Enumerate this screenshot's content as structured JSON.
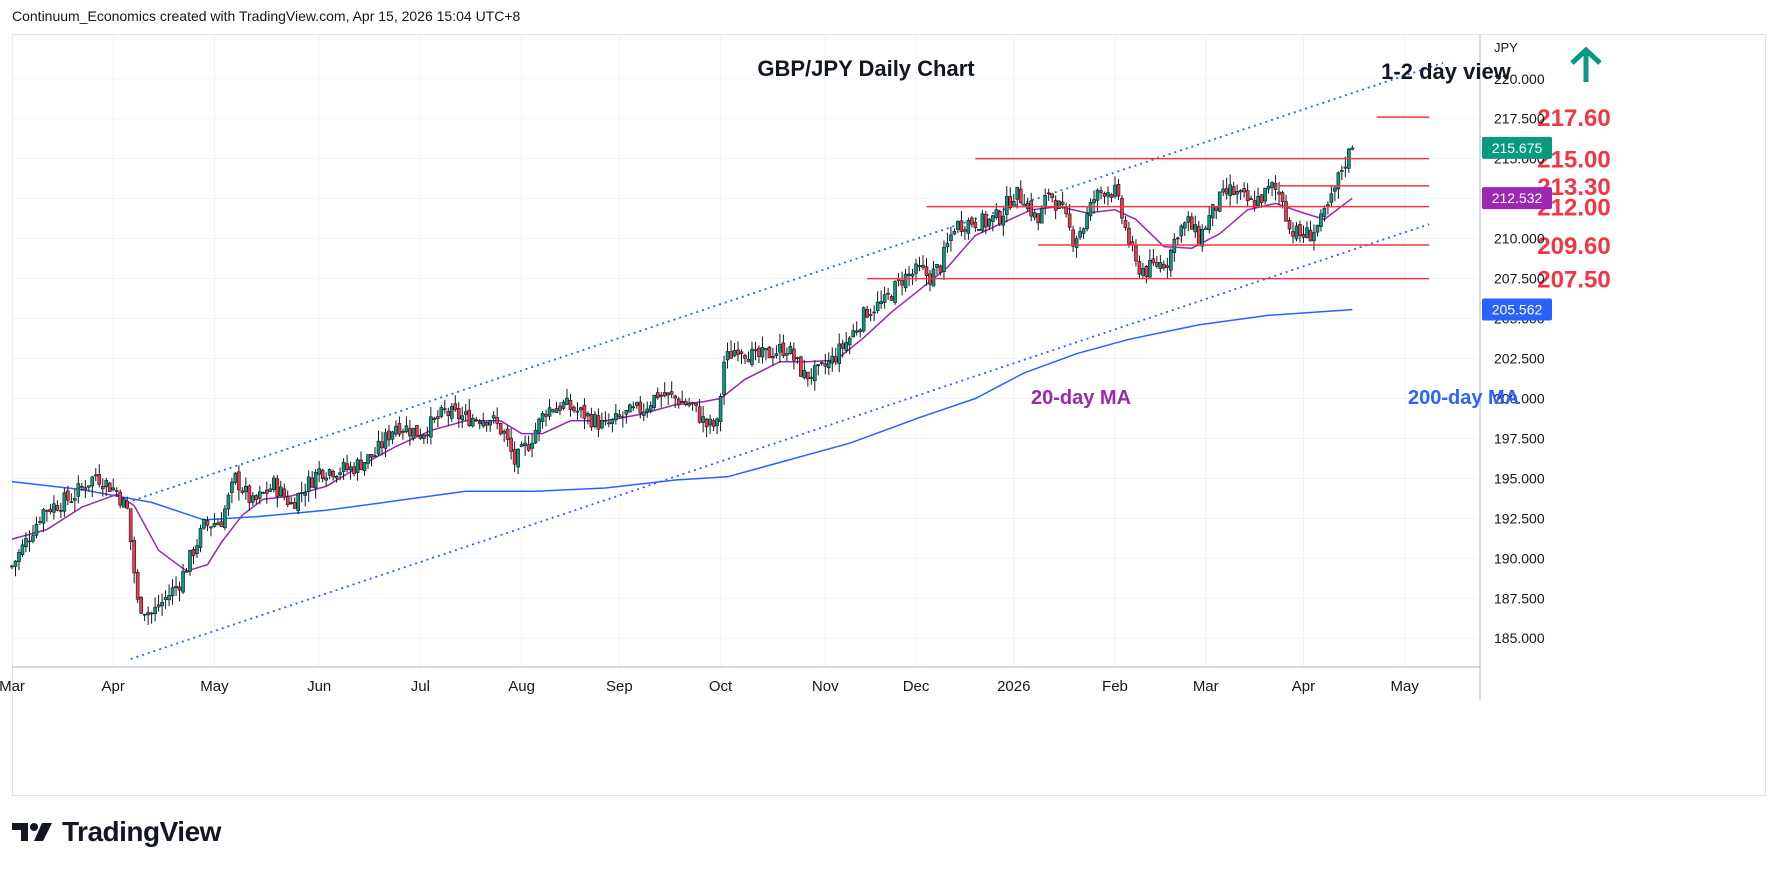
{
  "header": {
    "attribution": "Continuum_Economics created with TradingView.com, Apr 15, 2026 15:04 UTC+8"
  },
  "footer": {
    "brand": "TradingView",
    "logo_icon": "tradingview-logo-icon"
  },
  "colors": {
    "up": "#089981",
    "down": "#f23645",
    "ma20": "#9c27b0",
    "ma200": "#2962ff",
    "level": "#f23645",
    "arrow": "#089981",
    "grid": "#f0f3fa"
  },
  "chart_data": {
    "type": "candlestick",
    "title": "GBP/JPY Daily Chart",
    "view_label": "1-2 day view",
    "view_icon": "up-arrow-icon",
    "currency": "JPY",
    "y_ticks": [
      185,
      187.5,
      190,
      192.5,
      195,
      197.5,
      200,
      202.5,
      205,
      207.5,
      210,
      212.5,
      215,
      217.5,
      220
    ],
    "y_tick_labels": [
      "185.000",
      "187.500",
      "190.000",
      "192.500",
      "195.000",
      "197.500",
      "200.000",
      "202.500",
      "205.000",
      "207.500",
      "210.000",
      "212.500",
      "215.000",
      "217.500",
      "220.000"
    ],
    "ylim": [
      183.2,
      222.8
    ],
    "x_months": [
      "Mar",
      "Apr",
      "May",
      "Jun",
      "Jul",
      "Aug",
      "Sep",
      "Oct",
      "Nov",
      "Dec",
      "2026",
      "Feb",
      "Mar",
      "Apr",
      "May"
    ],
    "price_badges": [
      {
        "label": "215.675",
        "value": 215.675,
        "color": "#089981"
      },
      {
        "label": "212.532",
        "value": 212.532,
        "color": "#9c27b0"
      },
      {
        "label": "205.562",
        "value": 205.562,
        "color": "#2962ff"
      }
    ],
    "levels": [
      {
        "label": "217.60",
        "value": 217.6,
        "from_day": 391,
        "to_day": 406
      },
      {
        "label": "215.00",
        "value": 215.0,
        "from_day": 276,
        "to_day": 406
      },
      {
        "label": "213.30",
        "value": 213.3,
        "from_day": 363,
        "to_day": 406
      },
      {
        "label": "212.00",
        "value": 212.0,
        "from_day": 262,
        "to_day": 406
      },
      {
        "label": "209.60",
        "value": 209.6,
        "from_day": 294,
        "to_day": 406
      },
      {
        "label": "207.50",
        "value": 207.5,
        "from_day": 245,
        "to_day": 406
      }
    ],
    "channel": {
      "upper": [
        [
          33,
          193.5
        ],
        [
          410,
          221.0
        ]
      ],
      "lower": [
        [
          34,
          183.7
        ],
        [
          406,
          210.9
        ]
      ]
    },
    "ma_labels": {
      "ma20": "20-day MA",
      "ma200": "200-day MA"
    },
    "anchors": [
      [
        0,
        189.5
      ],
      [
        9,
        193.0
      ],
      [
        17,
        193.8
      ],
      [
        24,
        195.2
      ],
      [
        30,
        194.2
      ],
      [
        33,
        193.0
      ],
      [
        36,
        187.2
      ],
      [
        40,
        186.5
      ],
      [
        48,
        188.5
      ],
      [
        55,
        192.0
      ],
      [
        60,
        192.4
      ],
      [
        64,
        195.0
      ],
      [
        69,
        193.4
      ],
      [
        75,
        194.6
      ],
      [
        80,
        193.4
      ],
      [
        88,
        195.5
      ],
      [
        97,
        195.6
      ],
      [
        104,
        196.5
      ],
      [
        110,
        198.4
      ],
      [
        117,
        197.8
      ],
      [
        124,
        199.1
      ],
      [
        130,
        198.8
      ],
      [
        137,
        198.8
      ],
      [
        141,
        197.8
      ],
      [
        144,
        196.0
      ],
      [
        148,
        197.2
      ],
      [
        153,
        199.3
      ],
      [
        158,
        199.6
      ],
      [
        164,
        199.0
      ],
      [
        170,
        198.2
      ],
      [
        176,
        199.0
      ],
      [
        181,
        199.4
      ],
      [
        185,
        200.3
      ],
      [
        190,
        200.0
      ],
      [
        195,
        199.5
      ],
      [
        199,
        198.3
      ],
      [
        202,
        198.3
      ],
      [
        204,
        202.3
      ],
      [
        208,
        203.3
      ],
      [
        213,
        202.5
      ],
      [
        218,
        202.9
      ],
      [
        222,
        203.2
      ],
      [
        227,
        201.4
      ],
      [
        231,
        201.6
      ],
      [
        235,
        202.4
      ],
      [
        240,
        203.8
      ],
      [
        245,
        205.5
      ],
      [
        250,
        206.0
      ],
      [
        255,
        207.5
      ],
      [
        260,
        208.0
      ],
      [
        263,
        207.6
      ],
      [
        266,
        208.3
      ],
      [
        270,
        210.8
      ],
      [
        275,
        211.1
      ],
      [
        279,
        211.0
      ],
      [
        283,
        211.4
      ],
      [
        287,
        212.8
      ],
      [
        290,
        212.5
      ],
      [
        294,
        211.0
      ],
      [
        297,
        213.0
      ],
      [
        301,
        211.6
      ],
      [
        304,
        210.0
      ],
      [
        307,
        210.8
      ],
      [
        310,
        212.5
      ],
      [
        313,
        213.1
      ],
      [
        316,
        212.9
      ],
      [
        319,
        210.6
      ],
      [
        322,
        208.3
      ],
      [
        325,
        208.0
      ],
      [
        328,
        208.4
      ],
      [
        331,
        208.6
      ],
      [
        334,
        210.5
      ],
      [
        337,
        211.0
      ],
      [
        340,
        210.0
      ],
      [
        343,
        211.3
      ],
      [
        346,
        212.4
      ],
      [
        349,
        213.0
      ],
      [
        352,
        212.6
      ],
      [
        355,
        212.2
      ],
      [
        358,
        212.6
      ],
      [
        361,
        213.2
      ],
      [
        364,
        212.6
      ],
      [
        366,
        210.6
      ],
      [
        369,
        210.2
      ],
      [
        372,
        210.3
      ],
      [
        375,
        211.0
      ],
      [
        378,
        212.4
      ],
      [
        381,
        214.4
      ],
      [
        383,
        215.3
      ],
      [
        384,
        215.65
      ]
    ],
    "ma20_points": [
      [
        0,
        191.2
      ],
      [
        10,
        191.8
      ],
      [
        20,
        193.2
      ],
      [
        30,
        194.0
      ],
      [
        35,
        193.3
      ],
      [
        42,
        190.5
      ],
      [
        50,
        189.2
      ],
      [
        56,
        189.6
      ],
      [
        60,
        191.0
      ],
      [
        66,
        192.7
      ],
      [
        72,
        193.7
      ],
      [
        80,
        193.9
      ],
      [
        90,
        194.5
      ],
      [
        100,
        195.8
      ],
      [
        110,
        197.0
      ],
      [
        120,
        198.0
      ],
      [
        130,
        198.6
      ],
      [
        140,
        198.6
      ],
      [
        146,
        197.8
      ],
      [
        152,
        197.8
      ],
      [
        160,
        198.6
      ],
      [
        170,
        198.6
      ],
      [
        180,
        199.0
      ],
      [
        190,
        199.6
      ],
      [
        198,
        199.8
      ],
      [
        203,
        200.0
      ],
      [
        210,
        201.2
      ],
      [
        220,
        202.3
      ],
      [
        228,
        202.3
      ],
      [
        236,
        202.4
      ],
      [
        244,
        203.8
      ],
      [
        252,
        205.4
      ],
      [
        260,
        206.8
      ],
      [
        268,
        208.2
      ],
      [
        276,
        210.2
      ],
      [
        284,
        211.0
      ],
      [
        292,
        211.8
      ],
      [
        300,
        212.0
      ],
      [
        308,
        211.6
      ],
      [
        316,
        211.8
      ],
      [
        322,
        211.2
      ],
      [
        330,
        209.5
      ],
      [
        338,
        209.4
      ],
      [
        346,
        210.3
      ],
      [
        354,
        211.8
      ],
      [
        362,
        212.2
      ],
      [
        370,
        211.6
      ],
      [
        376,
        211.2
      ],
      [
        384,
        212.53
      ]
    ],
    "ma200_points": [
      [
        0,
        194.8
      ],
      [
        20,
        194.3
      ],
      [
        40,
        193.5
      ],
      [
        55,
        192.4
      ],
      [
        70,
        192.6
      ],
      [
        90,
        193.0
      ],
      [
        110,
        193.6
      ],
      [
        130,
        194.2
      ],
      [
        150,
        194.2
      ],
      [
        170,
        194.4
      ],
      [
        190,
        194.9
      ],
      [
        205,
        195.1
      ],
      [
        220,
        196.0
      ],
      [
        240,
        197.2
      ],
      [
        260,
        198.8
      ],
      [
        276,
        200.0
      ],
      [
        290,
        201.6
      ],
      [
        305,
        202.8
      ],
      [
        320,
        203.7
      ],
      [
        340,
        204.6
      ],
      [
        360,
        205.2
      ],
      [
        384,
        205.56
      ]
    ]
  }
}
